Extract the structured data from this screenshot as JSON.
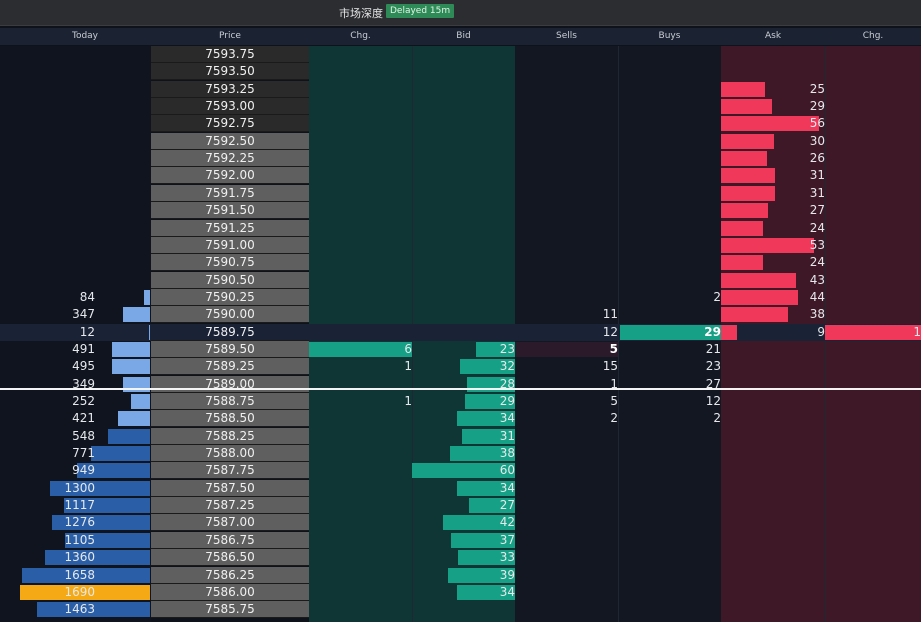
{
  "topbar": {
    "title": "市场深度",
    "badge": "Delayed 15m"
  },
  "colors": {
    "bg": "#0e121b",
    "bid_bar": "#16a085",
    "ask_bar": "#f0385a",
    "today_dark": "#2a5fa8",
    "today_light": "#7aa8e6",
    "highlight": "#f5a914",
    "price_bg": "#5f5f5f",
    "price_bg_dark": "#2a2a2a",
    "bid_col_bg": "#0f3a3a",
    "ask_col_bg": "#4a1d2c"
  },
  "headers": [
    "Today",
    "Price",
    "Chg.",
    "Bid",
    "Sells",
    "Buys",
    "Ask",
    "Chg."
  ],
  "rows": [
    {
      "today": "",
      "price": "7593.75",
      "chg": "",
      "bid": "",
      "sells": "",
      "buys": "",
      "ask": "",
      "achg": "",
      "side": "ask",
      "dark": true
    },
    {
      "today": "",
      "price": "7593.50",
      "chg": "",
      "bid": "",
      "sells": "",
      "buys": "",
      "ask": "",
      "achg": "",
      "side": "ask",
      "dark": true
    },
    {
      "today": "",
      "price": "7593.25",
      "chg": "",
      "bid": "",
      "sells": "",
      "buys": "",
      "ask": "25",
      "achg": "",
      "side": "ask",
      "dark": true
    },
    {
      "today": "",
      "price": "7593.00",
      "chg": "",
      "bid": "",
      "sells": "",
      "buys": "",
      "ask": "29",
      "achg": "",
      "side": "ask",
      "dark": true
    },
    {
      "today": "",
      "price": "7592.75",
      "chg": "",
      "bid": "",
      "sells": "",
      "buys": "",
      "ask": "56",
      "achg": "",
      "side": "ask",
      "dark": true
    },
    {
      "today": "",
      "price": "7592.50",
      "chg": "",
      "bid": "",
      "sells": "",
      "buys": "",
      "ask": "30",
      "achg": "",
      "side": "ask"
    },
    {
      "today": "",
      "price": "7592.25",
      "chg": "",
      "bid": "",
      "sells": "",
      "buys": "",
      "ask": "26",
      "achg": "",
      "side": "ask"
    },
    {
      "today": "",
      "price": "7592.00",
      "chg": "",
      "bid": "",
      "sells": "",
      "buys": "",
      "ask": "31",
      "achg": "",
      "side": "ask"
    },
    {
      "today": "",
      "price": "7591.75",
      "chg": "",
      "bid": "",
      "sells": "",
      "buys": "",
      "ask": "31",
      "achg": "",
      "side": "ask"
    },
    {
      "today": "",
      "price": "7591.50",
      "chg": "",
      "bid": "",
      "sells": "",
      "buys": "",
      "ask": "27",
      "achg": "",
      "side": "ask"
    },
    {
      "today": "",
      "price": "7591.25",
      "chg": "",
      "bid": "",
      "sells": "",
      "buys": "",
      "ask": "24",
      "achg": "",
      "side": "ask"
    },
    {
      "today": "",
      "price": "7591.00",
      "chg": "",
      "bid": "",
      "sells": "",
      "buys": "",
      "ask": "53",
      "achg": "",
      "side": "ask"
    },
    {
      "today": "",
      "price": "7590.75",
      "chg": "",
      "bid": "",
      "sells": "",
      "buys": "",
      "ask": "24",
      "achg": "",
      "side": "ask"
    },
    {
      "today": "",
      "price": "7590.50",
      "chg": "",
      "bid": "",
      "sells": "",
      "buys": "",
      "ask": "43",
      "achg": "",
      "side": "ask"
    },
    {
      "today": "84",
      "price": "7590.25",
      "chg": "",
      "bid": "",
      "sells": "",
      "buys": "2",
      "ask": "44",
      "achg": "",
      "side": "ask"
    },
    {
      "today": "347",
      "price": "7590.00",
      "chg": "",
      "bid": "",
      "sells": "11",
      "buys": "",
      "ask": "38",
      "achg": "",
      "side": "ask"
    },
    {
      "today": "12",
      "price": "7589.75",
      "chg": "",
      "bid": "",
      "sells": "12",
      "buys": "29",
      "ask": "9",
      "achg": "1",
      "side": "mid"
    },
    {
      "today": "491",
      "price": "7589.50",
      "chg": "6",
      "bid": "23",
      "sells": "5",
      "buys": "21",
      "ask": "",
      "achg": "",
      "side": "bid"
    },
    {
      "today": "495",
      "price": "7589.25",
      "chg": "1",
      "bid": "32",
      "sells": "15",
      "buys": "23",
      "ask": "",
      "achg": "",
      "side": "bid"
    },
    {
      "today": "349",
      "price": "7589.00",
      "chg": "",
      "bid": "28",
      "sells": "1",
      "buys": "27",
      "ask": "",
      "achg": "",
      "side": "bid"
    },
    {
      "today": "252",
      "price": "7588.75",
      "chg": "1",
      "bid": "29",
      "sells": "5",
      "buys": "12",
      "ask": "",
      "achg": "",
      "side": "bid"
    },
    {
      "today": "421",
      "price": "7588.50",
      "chg": "",
      "bid": "34",
      "sells": "2",
      "buys": "2",
      "ask": "",
      "achg": "",
      "side": "bid"
    },
    {
      "today": "548",
      "price": "7588.25",
      "chg": "",
      "bid": "31",
      "sells": "",
      "buys": "",
      "ask": "",
      "achg": "",
      "side": "bid"
    },
    {
      "today": "771",
      "price": "7588.00",
      "chg": "",
      "bid": "38",
      "sells": "",
      "buys": "",
      "ask": "",
      "achg": "",
      "side": "bid"
    },
    {
      "today": "949",
      "price": "7587.75",
      "chg": "",
      "bid": "60",
      "sells": "",
      "buys": "",
      "ask": "",
      "achg": "",
      "side": "bid"
    },
    {
      "today": "1300",
      "price": "7587.50",
      "chg": "",
      "bid": "34",
      "sells": "",
      "buys": "",
      "ask": "",
      "achg": "",
      "side": "bid"
    },
    {
      "today": "1117",
      "price": "7587.25",
      "chg": "",
      "bid": "27",
      "sells": "",
      "buys": "",
      "ask": "",
      "achg": "",
      "side": "bid"
    },
    {
      "today": "1276",
      "price": "7587.00",
      "chg": "",
      "bid": "42",
      "sells": "",
      "buys": "",
      "ask": "",
      "achg": "",
      "side": "bid"
    },
    {
      "today": "1105",
      "price": "7586.75",
      "chg": "",
      "bid": "37",
      "sells": "",
      "buys": "",
      "ask": "",
      "achg": "",
      "side": "bid"
    },
    {
      "today": "1360",
      "price": "7586.50",
      "chg": "",
      "bid": "33",
      "sells": "",
      "buys": "",
      "ask": "",
      "achg": "",
      "side": "bid"
    },
    {
      "today": "1658",
      "price": "7586.25",
      "chg": "",
      "bid": "39",
      "sells": "",
      "buys": "",
      "ask": "",
      "achg": "",
      "side": "bid"
    },
    {
      "today": "1690",
      "price": "7586.00",
      "chg": "",
      "bid": "34",
      "sells": "",
      "buys": "",
      "ask": "",
      "achg": "",
      "side": "bid",
      "hl": true
    },
    {
      "today": "1463",
      "price": "7585.75",
      "chg": "",
      "bid": "",
      "sells": "",
      "buys": "",
      "ask": "",
      "achg": "",
      "side": "bid"
    }
  ]
}
